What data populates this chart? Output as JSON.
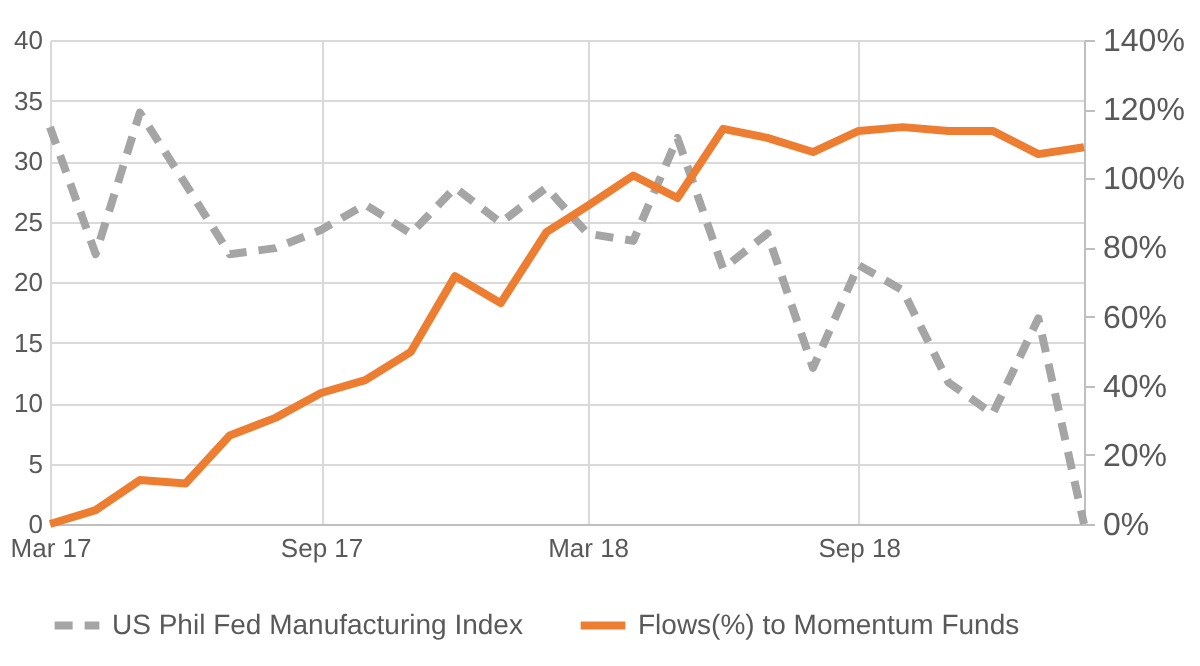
{
  "chart_data": {
    "type": "line",
    "x": [
      "2017-03",
      "2017-04",
      "2017-05",
      "2017-06",
      "2017-07",
      "2017-08",
      "2017-09",
      "2017-10",
      "2017-11",
      "2017-12",
      "2018-01",
      "2018-02",
      "2018-03",
      "2018-04",
      "2018-05",
      "2018-06",
      "2018-07",
      "2018-08",
      "2018-09",
      "2018-10",
      "2018-11",
      "2018-12",
      "2019-01",
      "2019-02"
    ],
    "series": [
      {
        "name": "US Phil Fed Manufacturing Index",
        "color": "#a5a5a5",
        "line_style": "dashed",
        "values": [
          32.8,
          22.3,
          34,
          28.1,
          22.3,
          22.8,
          24.3,
          26.4,
          24,
          27.8,
          24.9,
          27.8,
          24,
          23.4,
          31.9,
          21.1,
          24,
          12.9,
          21.4,
          19.3,
          11.7,
          9.1,
          17,
          0
        ]
      },
      {
        "name": "Flows(%) to Momentum Funds",
        "color": "#ed7d31",
        "line_style": "solid",
        "axis": "y2",
        "values": [
          0,
          4,
          12.7,
          11.7,
          25.6,
          30.7,
          37.9,
          41.6,
          49.8,
          71.7,
          63.9,
          84.4,
          92,
          100.8,
          94.3,
          114.3,
          111.7,
          107.6,
          113.7,
          114.8,
          113.7,
          113.7,
          107,
          109
        ]
      }
    ],
    "xlim": [
      "2017-03",
      "2019-02"
    ],
    "xticks": [
      {
        "value": "2017-03",
        "label": "Mar 17"
      },
      {
        "value": "2017-09",
        "label": "Sep 17"
      },
      {
        "value": "2018-03",
        "label": "Mar 18"
      },
      {
        "value": "2018-09",
        "label": "Sep 18"
      }
    ],
    "ylim": [
      0,
      40
    ],
    "yticks": [
      0,
      5,
      10,
      15,
      20,
      25,
      30,
      35,
      40
    ],
    "y2lim": [
      0,
      140
    ],
    "y2ticks": [
      {
        "value": 0,
        "label": "0%"
      },
      {
        "value": 20,
        "label": "20%"
      },
      {
        "value": 40,
        "label": "40%"
      },
      {
        "value": 60,
        "label": "60%"
      },
      {
        "value": 80,
        "label": "80%"
      },
      {
        "value": 100,
        "label": "100%"
      },
      {
        "value": 120,
        "label": "120%"
      },
      {
        "value": 140,
        "label": "140%"
      }
    ],
    "grid": true,
    "legend": "bottom",
    "marker": "none"
  }
}
